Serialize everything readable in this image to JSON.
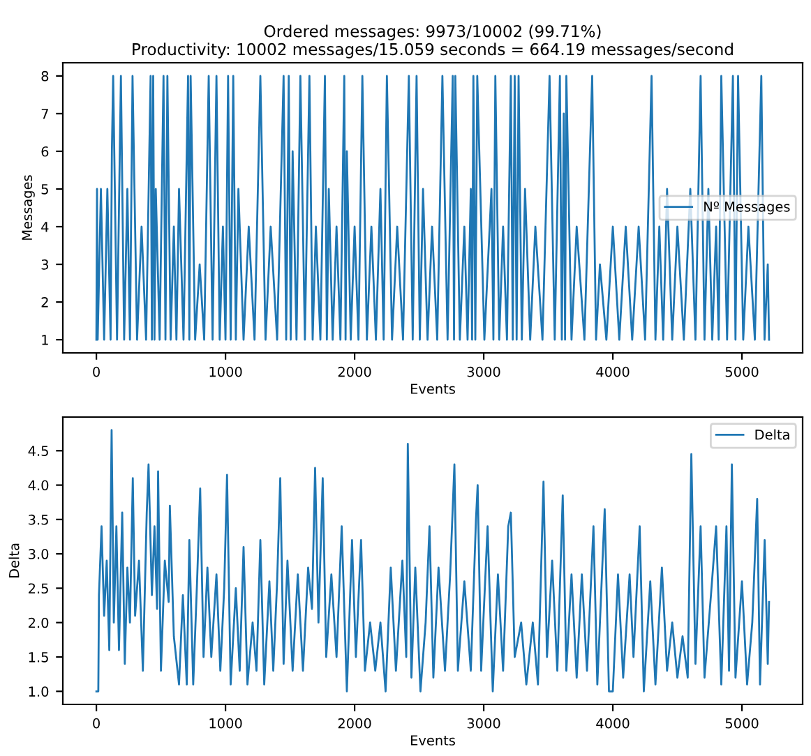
{
  "chart_data": [
    {
      "type": "line",
      "title": "Ordered messages: 9973/10002 (99.71%)\nProductivity: 10002 messages/15.059 seconds = 664.19 messages/second",
      "xlabel": "Events",
      "ylabel": "Messages",
      "xlim": [
        -260,
        5470
      ],
      "xticks": [
        0,
        1000,
        2000,
        3000,
        4000,
        5000
      ],
      "ylim": [
        0.65,
        8.35
      ],
      "yticks": [
        1,
        2,
        3,
        4,
        5,
        6,
        7,
        8
      ],
      "legend": "center right",
      "grid": false,
      "series": [
        {
          "name": "Nº Messages",
          "color": "#1f77b4",
          "x": [
            0,
            5,
            10,
            35,
            60,
            85,
            110,
            120,
            130,
            160,
            190,
            215,
            240,
            260,
            280,
            315,
            350,
            385,
            420,
            430,
            440,
            450,
            460,
            490,
            520,
            535,
            550,
            575,
            600,
            620,
            640,
            675,
            710,
            720,
            730,
            765,
            800,
            835,
            870,
            900,
            930,
            955,
            980,
            1000,
            1020,
            1040,
            1060,
            1080,
            1100,
            1140,
            1180,
            1225,
            1270,
            1310,
            1350,
            1400,
            1450,
            1470,
            1490,
            1505,
            1520,
            1550,
            1580,
            1615,
            1650,
            1675,
            1700,
            1735,
            1770,
            1785,
            1800,
            1830,
            1860,
            1890,
            1920,
            1930,
            1940,
            1970,
            2000,
            2030,
            2060,
            2095,
            2130,
            2165,
            2200,
            2225,
            2250,
            2290,
            2330,
            2375,
            2420,
            2450,
            2480,
            2505,
            2530,
            2565,
            2600,
            2640,
            2680,
            2720,
            2760,
            2770,
            2780,
            2815,
            2850,
            2875,
            2900,
            2910,
            2920,
            2935,
            2950,
            3005,
            3060,
            3075,
            3090,
            3120,
            3150,
            3180,
            3210,
            3225,
            3240,
            3255,
            3270,
            3295,
            3320,
            3360,
            3400,
            3455,
            3510,
            3550,
            3590,
            3605,
            3620,
            3630,
            3640,
            3680,
            3720,
            3780,
            3840,
            3870,
            3900,
            3950,
            4000,
            4050,
            4100,
            4150,
            4200,
            4250,
            4300,
            4330,
            4360,
            4390,
            4420,
            4460,
            4500,
            4550,
            4600,
            4640,
            4680,
            4710,
            4740,
            4770,
            4800,
            4820,
            4840,
            4885,
            4930,
            4950,
            4970,
            5010,
            5050,
            5100,
            5150,
            5175,
            5200,
            5210
          ],
          "values": [
            1,
            5,
            1,
            5,
            1,
            5,
            1,
            6,
            8,
            1,
            8,
            1,
            5,
            1,
            8,
            1,
            4,
            1,
            8,
            1,
            8,
            1,
            5,
            1,
            8,
            1,
            8,
            1,
            4,
            1,
            5,
            1,
            8,
            1,
            8,
            1,
            3,
            1,
            8,
            1,
            8,
            1,
            4,
            1,
            8,
            1,
            8,
            1,
            5,
            1,
            4,
            1,
            8,
            1,
            4,
            1,
            8,
            1,
            8,
            1,
            6,
            1,
            8,
            1,
            8,
            1,
            4,
            1,
            8,
            1,
            5,
            1,
            4,
            1,
            8,
            1,
            6,
            1,
            4,
            1,
            8,
            1,
            4,
            1,
            5,
            1,
            8,
            1,
            4,
            1,
            8,
            1,
            8,
            1,
            5,
            1,
            4,
            1,
            8,
            1,
            8,
            1,
            8,
            1,
            4,
            1,
            5,
            1,
            8,
            1,
            8,
            1,
            5,
            1,
            8,
            1,
            4,
            1,
            8,
            1,
            8,
            1,
            8,
            1,
            5,
            1,
            4,
            1,
            8,
            1,
            8,
            1,
            7,
            1,
            8,
            1,
            4,
            1,
            8,
            1,
            3,
            1,
            4,
            1,
            4,
            1,
            4,
            1,
            8,
            1,
            4,
            1,
            5,
            1,
            4,
            1,
            5,
            1,
            8,
            1,
            5,
            1,
            4,
            1,
            8,
            1,
            8,
            1,
            8,
            1,
            4,
            1,
            8,
            1,
            3,
            1
          ]
        }
      ]
    },
    {
      "type": "line",
      "xlabel": "Events",
      "ylabel": "Delta",
      "xlim": [
        -260,
        5470
      ],
      "xticks": [
        0,
        1000,
        2000,
        3000,
        4000,
        5000
      ],
      "ylim": [
        0.81,
        4.99
      ],
      "yticks": [
        {
          "value": 1,
          "label": "1.0"
        },
        1.5,
        {
          "value": 2,
          "label": "2.0"
        },
        2.5,
        {
          "value": 3,
          "label": "3.0"
        },
        3.5,
        {
          "value": 4,
          "label": "4.0"
        },
        4.5
      ],
      "legend": "top right",
      "grid": false,
      "series": [
        {
          "name": "Delta",
          "color": "#1f77b4",
          "x": [
            0,
            15,
            20,
            40,
            60,
            80,
            100,
            118,
            135,
            155,
            175,
            200,
            220,
            240,
            260,
            282,
            300,
            330,
            360,
            390,
            404,
            430,
            450,
            470,
            478,
            500,
            530,
            560,
            569,
            600,
            640,
            670,
            700,
            720,
            750,
            780,
            804,
            830,
            860,
            890,
            930,
            960,
            990,
            1012,
            1040,
            1080,
            1110,
            1140,
            1170,
            1210,
            1240,
            1270,
            1300,
            1340,
            1370,
            1400,
            1424,
            1450,
            1480,
            1520,
            1560,
            1600,
            1640,
            1670,
            1694,
            1720,
            1753,
            1780,
            1820,
            1860,
            1900,
            1940,
            1980,
            2010,
            2050,
            2080,
            2120,
            2160,
            2200,
            2240,
            2280,
            2320,
            2370,
            2400,
            2412,
            2440,
            2470,
            2510,
            2550,
            2580,
            2610,
            2650,
            2700,
            2740,
            2773,
            2800,
            2850,
            2900,
            2940,
            2953,
            2980,
            3030,
            3070,
            3110,
            3150,
            3190,
            3210,
            3240,
            3290,
            3330,
            3380,
            3420,
            3463,
            3490,
            3530,
            3570,
            3612,
            3640,
            3680,
            3720,
            3760,
            3800,
            3850,
            3880,
            3937,
            3970,
            4000,
            4040,
            4080,
            4130,
            4160,
            4208,
            4240,
            4290,
            4330,
            4380,
            4420,
            4460,
            4500,
            4540,
            4580,
            4608,
            4640,
            4680,
            4710,
            4760,
            4800,
            4840,
            4880,
            4900,
            4922,
            4950,
            5000,
            5040,
            5080,
            5118,
            5140,
            5176,
            5200,
            5210
          ],
          "values": [
            1.0,
            1.0,
            2.4,
            3.4,
            2.1,
            2.9,
            1.6,
            4.8,
            2.0,
            3.4,
            1.6,
            3.6,
            1.4,
            2.8,
            2.0,
            4.1,
            2.1,
            2.9,
            1.3,
            3.6,
            4.3,
            2.4,
            3.4,
            2.2,
            4.2,
            1.3,
            2.9,
            2.3,
            3.7,
            1.8,
            1.1,
            2.4,
            1.1,
            3.2,
            1.1,
            2.6,
            3.95,
            1.5,
            2.8,
            1.5,
            2.7,
            1.3,
            2.5,
            4.15,
            1.1,
            2.5,
            1.3,
            3.1,
            1.1,
            2.0,
            1.3,
            3.2,
            1.1,
            2.6,
            1.3,
            2.6,
            4.1,
            1.4,
            2.9,
            1.3,
            2.7,
            1.3,
            2.8,
            2.2,
            4.25,
            2.0,
            4.1,
            1.5,
            2.7,
            1.5,
            3.4,
            1.0,
            3.2,
            1.5,
            3.2,
            1.3,
            2.0,
            1.3,
            2.0,
            1.0,
            2.8,
            1.3,
            2.9,
            1.5,
            4.6,
            1.2,
            2.8,
            1.0,
            2.0,
            3.4,
            1.2,
            2.8,
            1.3,
            2.7,
            4.3,
            1.3,
            2.6,
            1.3,
            3.5,
            4.0,
            1.3,
            3.4,
            1.0,
            2.7,
            1.3,
            3.4,
            3.6,
            1.5,
            2.0,
            1.1,
            2.0,
            1.1,
            4.05,
            1.5,
            2.9,
            1.3,
            3.85,
            1.3,
            2.7,
            1.2,
            2.7,
            1.3,
            3.4,
            1.1,
            3.65,
            1.0,
            1.0,
            2.7,
            1.2,
            2.7,
            1.5,
            3.4,
            1.0,
            2.6,
            1.1,
            2.8,
            1.3,
            2.0,
            1.2,
            1.8,
            1.2,
            4.45,
            1.4,
            3.4,
            1.2,
            2.4,
            3.4,
            1.1,
            3.4,
            1.3,
            4.3,
            1.2,
            2.6,
            1.1,
            2.0,
            3.8,
            1.1,
            3.2,
            1.4,
            2.3
          ]
        }
      ]
    }
  ]
}
